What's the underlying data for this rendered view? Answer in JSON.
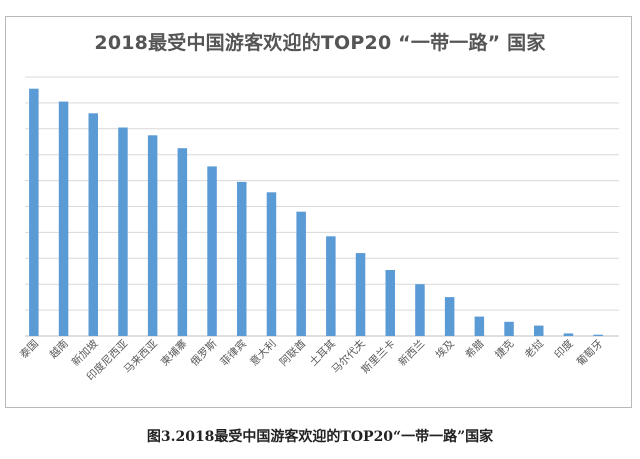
{
  "chart_data": {
    "type": "bar",
    "title": "2018最受中国游客欢迎的TOP20 “一带一路” 国家",
    "xlabel": "",
    "ylabel": "",
    "grid": true,
    "legend": "none",
    "ylim": [
      0,
      100
    ],
    "categories": [
      "泰国",
      "越南",
      "新加坡",
      "印度尼西亚",
      "马来西亚",
      "柬埔寨",
      "俄罗斯",
      "菲律宾",
      "意大利",
      "阿联酋",
      "土耳其",
      "马尔代夫",
      "斯里兰卡",
      "新西兰",
      "埃及",
      "希腊",
      "捷克",
      "老挝",
      "印度",
      "葡萄牙"
    ],
    "values": [
      95.5,
      90.5,
      86,
      80.5,
      77.5,
      72.5,
      65.5,
      59.5,
      55.5,
      48,
      38.5,
      32,
      25.5,
      20,
      15,
      7.5,
      5.5,
      4,
      1,
      0.5
    ],
    "bar_color": "#5b9bd5"
  },
  "caption": "图3.2018最受中国游客欢迎的TOP20“一带一路”国家"
}
